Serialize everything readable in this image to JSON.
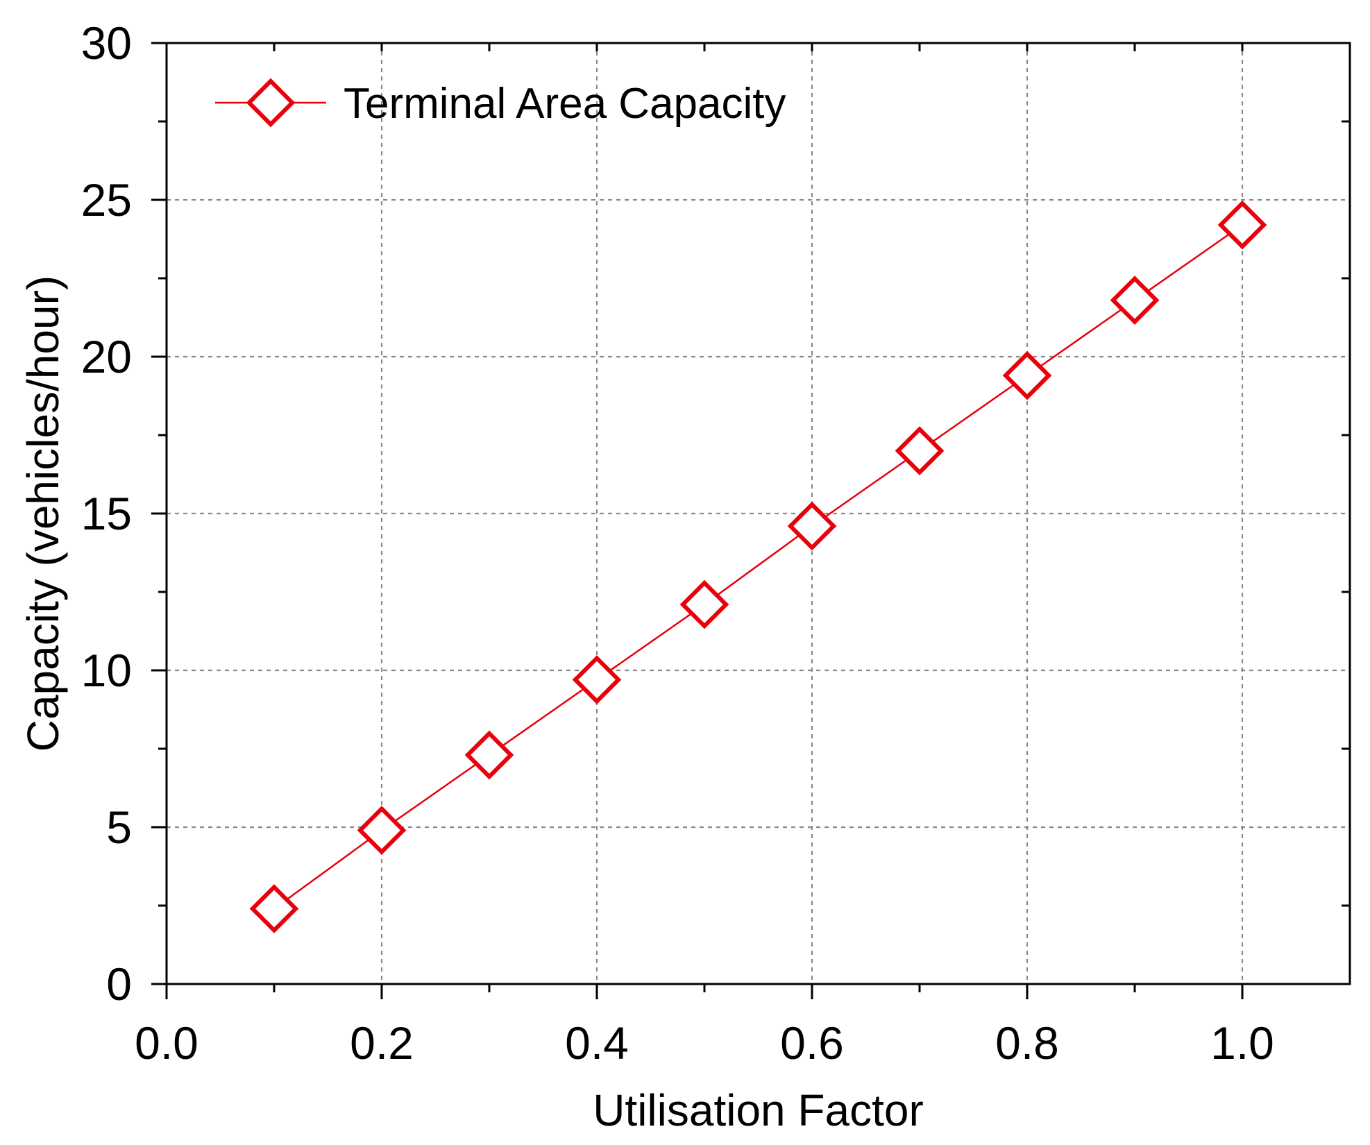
{
  "chart_data": {
    "type": "line",
    "title": "",
    "xlabel": "Utilisation Factor",
    "ylabel": "Capacity (vehicles/hour)",
    "xlim": [
      0.0,
      1.1
    ],
    "ylim": [
      0,
      30
    ],
    "x_ticks": [
      0.0,
      0.2,
      0.4,
      0.6,
      0.8,
      1.0
    ],
    "x_tick_labels": [
      "0.0",
      "0.2",
      "0.4",
      "0.6",
      "0.8",
      "1.0"
    ],
    "y_ticks": [
      0,
      5,
      10,
      15,
      20,
      25,
      30
    ],
    "y_tick_labels": [
      "0",
      "5",
      "10",
      "15",
      "20",
      "25",
      "30"
    ],
    "grid": true,
    "legend_position": "top-left",
    "series": [
      {
        "name": "Terminal Area Capacity",
        "color": "#e8000b",
        "marker": "open-diamond",
        "x": [
          0.1,
          0.2,
          0.3,
          0.4,
          0.5,
          0.6,
          0.7,
          0.8,
          0.9,
          1.0
        ],
        "y": [
          2.4,
          4.9,
          7.3,
          9.7,
          12.1,
          14.6,
          17.0,
          19.4,
          21.8,
          24.2
        ]
      }
    ]
  }
}
